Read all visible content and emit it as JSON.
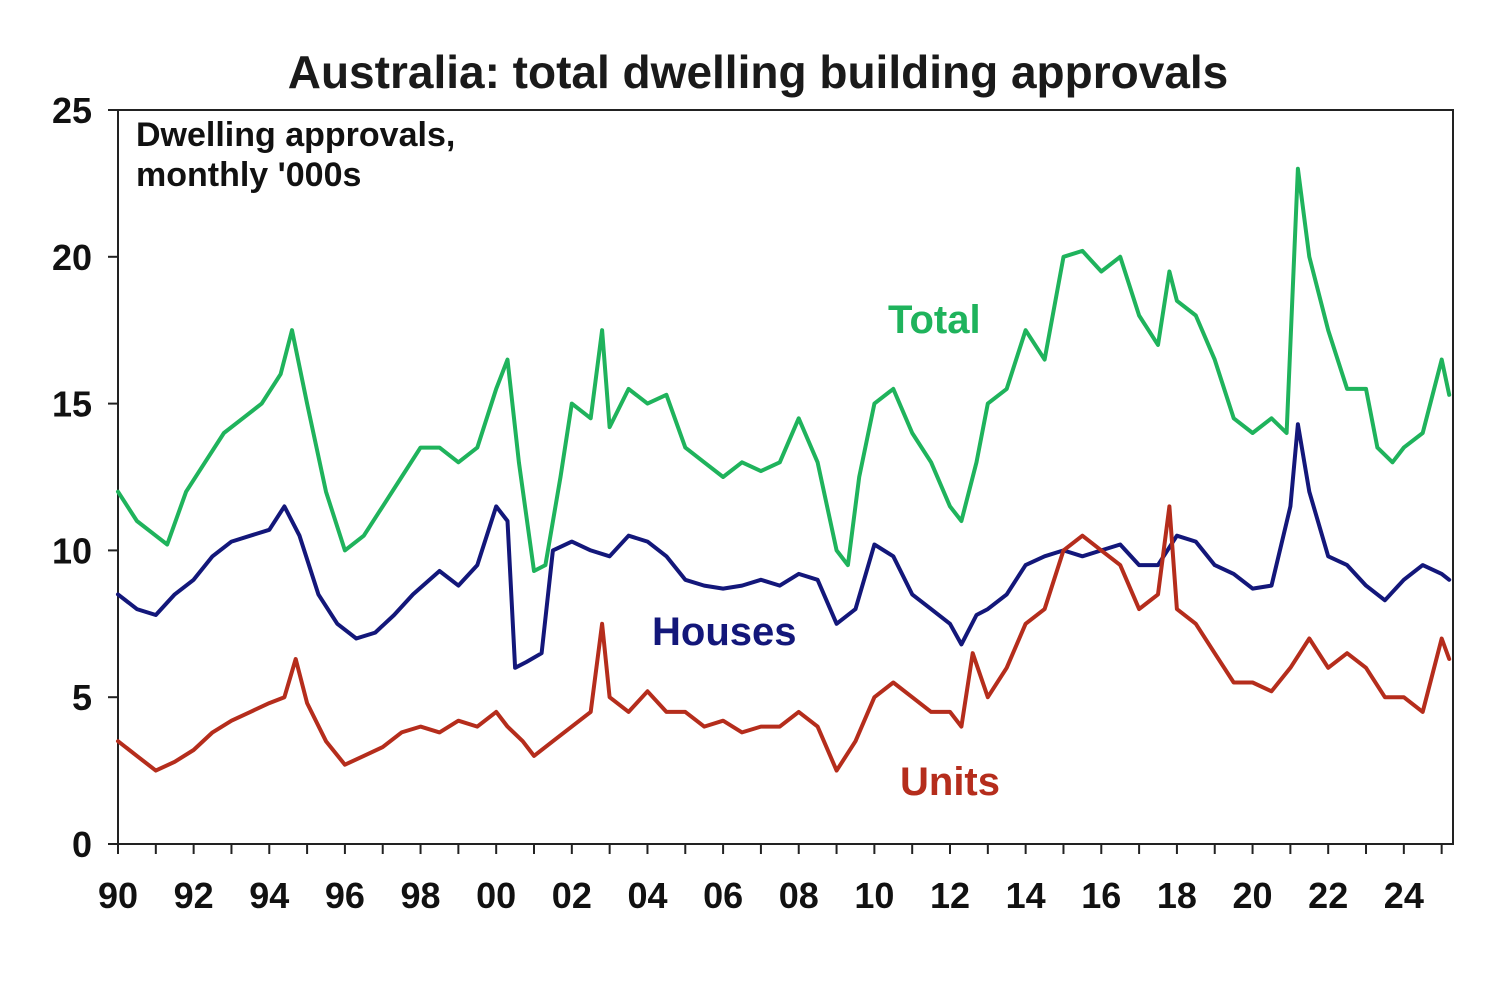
{
  "chart_data": {
    "type": "line",
    "title": "Australia: total dwelling building approvals",
    "annotation": [
      "Dwelling approvals,",
      "monthly '000s"
    ],
    "xlabel": "",
    "ylabel": "",
    "x_tick_labels": [
      "90",
      "92",
      "94",
      "96",
      "98",
      "00",
      "02",
      "04",
      "06",
      "08",
      "10",
      "12",
      "14",
      "16",
      "18",
      "20",
      "22",
      "24"
    ],
    "y_tick_labels": [
      "0",
      "5",
      "10",
      "15",
      "20",
      "25"
    ],
    "xlim": [
      1990,
      2025.3
    ],
    "ylim": [
      0,
      25
    ],
    "grid": false,
    "colors": {
      "Total": "#1fb35c",
      "Houses": "#13177a",
      "Units": "#b52d1c"
    },
    "series": [
      {
        "name": "Total",
        "x": [
          1990.0,
          1990.5,
          1991.0,
          1991.3,
          1991.8,
          1992.3,
          1992.8,
          1993.3,
          1993.8,
          1994.3,
          1994.6,
          1995.0,
          1995.5,
          1996.0,
          1996.5,
          1997.0,
          1997.5,
          1998.0,
          1998.5,
          1999.0,
          1999.5,
          2000.0,
          2000.3,
          2000.6,
          2001.0,
          2001.3,
          2001.7,
          2002.0,
          2002.5,
          2002.8,
          2003.0,
          2003.5,
          2004.0,
          2004.5,
          2005.0,
          2005.5,
          2006.0,
          2006.5,
          2007.0,
          2007.5,
          2008.0,
          2008.5,
          2009.0,
          2009.3,
          2009.6,
          2010.0,
          2010.5,
          2011.0,
          2011.5,
          2012.0,
          2012.3,
          2012.7,
          2013.0,
          2013.5,
          2014.0,
          2014.5,
          2015.0,
          2015.5,
          2016.0,
          2016.5,
          2017.0,
          2017.5,
          2017.8,
          2018.0,
          2018.5,
          2019.0,
          2019.5,
          2020.0,
          2020.5,
          2020.9,
          2021.2,
          2021.5,
          2022.0,
          2022.5,
          2023.0,
          2023.3,
          2023.7,
          2024.0,
          2024.5,
          2025.0,
          2025.2
        ],
        "values": [
          12.0,
          11.0,
          10.5,
          10.2,
          12.0,
          13.0,
          14.0,
          14.5,
          15.0,
          16.0,
          17.5,
          15.0,
          12.0,
          10.0,
          10.5,
          11.5,
          12.5,
          13.5,
          13.5,
          13.0,
          13.5,
          15.5,
          16.5,
          13.0,
          9.3,
          9.5,
          12.5,
          15.0,
          14.5,
          17.5,
          14.2,
          15.5,
          15.0,
          15.3,
          13.5,
          13.0,
          12.5,
          13.0,
          12.7,
          13.0,
          14.5,
          13.0,
          10.0,
          9.5,
          12.5,
          15.0,
          15.5,
          14.0,
          13.0,
          11.5,
          11.0,
          13.0,
          15.0,
          15.5,
          17.5,
          16.5,
          20.0,
          20.2,
          19.5,
          20.0,
          18.0,
          17.0,
          19.5,
          18.5,
          18.0,
          16.5,
          14.5,
          14.0,
          14.5,
          14.0,
          23.0,
          20.0,
          17.5,
          15.5,
          15.5,
          13.5,
          13.0,
          13.5,
          14.0,
          16.5,
          15.3
        ]
      },
      {
        "name": "Houses",
        "x": [
          1990.0,
          1990.5,
          1991.0,
          1991.5,
          1992.0,
          1992.5,
          1993.0,
          1993.5,
          1994.0,
          1994.4,
          1994.8,
          1995.3,
          1995.8,
          1996.3,
          1996.8,
          1997.3,
          1997.8,
          1998.5,
          1999.0,
          1999.5,
          2000.0,
          2000.3,
          2000.5,
          2000.8,
          2001.2,
          2001.5,
          2002.0,
          2002.5,
          2003.0,
          2003.5,
          2004.0,
          2004.5,
          2005.0,
          2005.5,
          2006.0,
          2006.5,
          2007.0,
          2007.5,
          2008.0,
          2008.5,
          2009.0,
          2009.5,
          2010.0,
          2010.5,
          2011.0,
          2011.5,
          2012.0,
          2012.3,
          2012.7,
          2013.0,
          2013.5,
          2014.0,
          2014.5,
          2015.0,
          2015.5,
          2016.0,
          2016.5,
          2017.0,
          2017.5,
          2018.0,
          2018.5,
          2019.0,
          2019.5,
          2020.0,
          2020.5,
          2021.0,
          2021.2,
          2021.5,
          2022.0,
          2022.5,
          2023.0,
          2023.5,
          2024.0,
          2024.5,
          2025.0,
          2025.2
        ],
        "values": [
          8.5,
          8.0,
          7.8,
          8.5,
          9.0,
          9.8,
          10.3,
          10.5,
          10.7,
          11.5,
          10.5,
          8.5,
          7.5,
          7.0,
          7.2,
          7.8,
          8.5,
          9.3,
          8.8,
          9.5,
          11.5,
          11.0,
          6.0,
          6.2,
          6.5,
          10.0,
          10.3,
          10.0,
          9.8,
          10.5,
          10.3,
          9.8,
          9.0,
          8.8,
          8.7,
          8.8,
          9.0,
          8.8,
          9.2,
          9.0,
          7.5,
          8.0,
          10.2,
          9.8,
          8.5,
          8.0,
          7.5,
          6.8,
          7.8,
          8.0,
          8.5,
          9.5,
          9.8,
          10.0,
          9.8,
          10.0,
          10.2,
          9.5,
          9.5,
          10.5,
          10.3,
          9.5,
          9.2,
          8.7,
          8.8,
          11.5,
          14.3,
          12.0,
          9.8,
          9.5,
          8.8,
          8.3,
          9.0,
          9.5,
          9.2,
          9.0
        ]
      },
      {
        "name": "Units",
        "x": [
          1990.0,
          1990.5,
          1991.0,
          1991.5,
          1992.0,
          1992.5,
          1993.0,
          1993.5,
          1994.0,
          1994.4,
          1994.7,
          1995.0,
          1995.5,
          1996.0,
          1996.5,
          1997.0,
          1997.5,
          1998.0,
          1998.5,
          1999.0,
          1999.5,
          2000.0,
          2000.3,
          2000.7,
          2001.0,
          2001.5,
          2002.0,
          2002.5,
          2002.8,
          2003.0,
          2003.5,
          2004.0,
          2004.5,
          2005.0,
          2005.5,
          2006.0,
          2006.5,
          2007.0,
          2007.5,
          2008.0,
          2008.5,
          2009.0,
          2009.5,
          2010.0,
          2010.5,
          2011.0,
          2011.5,
          2012.0,
          2012.3,
          2012.6,
          2013.0,
          2013.5,
          2014.0,
          2014.5,
          2015.0,
          2015.5,
          2016.0,
          2016.5,
          2017.0,
          2017.5,
          2017.8,
          2018.0,
          2018.5,
          2019.0,
          2019.5,
          2020.0,
          2020.5,
          2021.0,
          2021.5,
          2022.0,
          2022.5,
          2023.0,
          2023.5,
          2024.0,
          2024.5,
          2025.0,
          2025.2
        ],
        "values": [
          3.5,
          3.0,
          2.5,
          2.8,
          3.2,
          3.8,
          4.2,
          4.5,
          4.8,
          5.0,
          6.3,
          4.8,
          3.5,
          2.7,
          3.0,
          3.3,
          3.8,
          4.0,
          3.8,
          4.2,
          4.0,
          4.5,
          4.0,
          3.5,
          3.0,
          3.5,
          4.0,
          4.5,
          7.5,
          5.0,
          4.5,
          5.2,
          4.5,
          4.5,
          4.0,
          4.2,
          3.8,
          4.0,
          4.0,
          4.5,
          4.0,
          2.5,
          3.5,
          5.0,
          5.5,
          5.0,
          4.5,
          4.5,
          4.0,
          6.5,
          5.0,
          6.0,
          7.5,
          8.0,
          10.0,
          10.5,
          10.0,
          9.5,
          8.0,
          8.5,
          11.5,
          8.0,
          7.5,
          6.5,
          5.5,
          5.5,
          5.2,
          6.0,
          7.0,
          6.0,
          6.5,
          6.0,
          5.0,
          5.0,
          4.5,
          7.0,
          6.3
        ]
      }
    ]
  }
}
